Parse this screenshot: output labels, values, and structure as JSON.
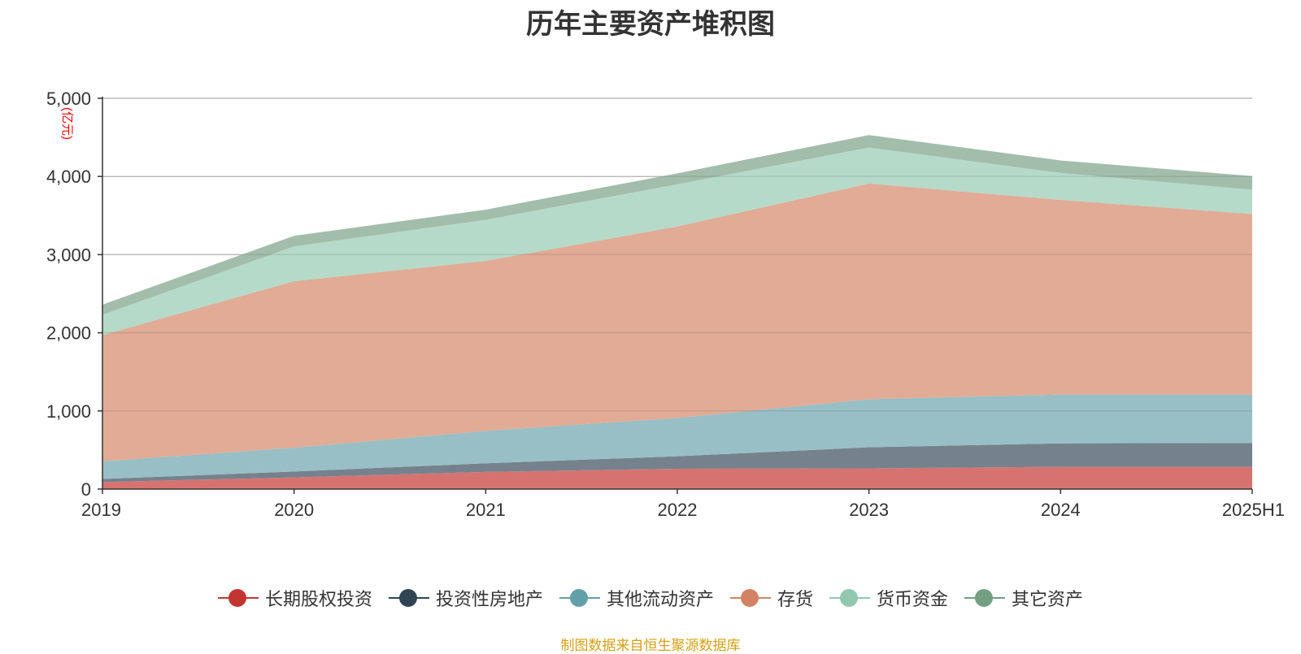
{
  "chart_data": {
    "type": "area",
    "stacked": true,
    "title": "历年主要资产堆积图",
    "unit_label": "(亿元)",
    "categories": [
      "2019",
      "2020",
      "2021",
      "2022",
      "2023",
      "2024",
      "2025H1"
    ],
    "ylim": [
      0,
      5000
    ],
    "yticks": [
      0,
      1000,
      2000,
      3000,
      4000,
      5000
    ],
    "ytick_labels": [
      "0",
      "1,000",
      "2,000",
      "3,000",
      "4,000",
      "5,000"
    ],
    "grid": true,
    "legend_position": "bottom",
    "series": [
      {
        "name": "长期股权投资",
        "color": "#c23531",
        "fill": "#d46b69",
        "values": [
          90,
          150,
          220,
          260,
          265,
          285,
          285
        ]
      },
      {
        "name": "投资性房地产",
        "color": "#2f4554",
        "fill": "#6e7b87",
        "values": [
          40,
          75,
          110,
          160,
          270,
          300,
          305
        ]
      },
      {
        "name": "其他流动资产",
        "color": "#61a0a8",
        "fill": "#92bcc2",
        "values": [
          225,
          305,
          415,
          490,
          615,
          625,
          620
        ]
      },
      {
        "name": "存货",
        "color": "#d48265",
        "fill": "#dfa690",
        "values": [
          1615,
          2130,
          2175,
          2450,
          2760,
          2490,
          2310
        ]
      },
      {
        "name": "货币资金",
        "color": "#91c7ae",
        "fill": "#b1d8c6",
        "values": [
          260,
          445,
          525,
          540,
          460,
          345,
          310
        ]
      },
      {
        "name": "其它资产",
        "color": "#749f83",
        "fill": "#9eb9a6",
        "values": [
          130,
          135,
          130,
          140,
          160,
          160,
          175
        ]
      }
    ]
  },
  "footer": {
    "source": "制图数据来自恒生聚源数据库"
  }
}
